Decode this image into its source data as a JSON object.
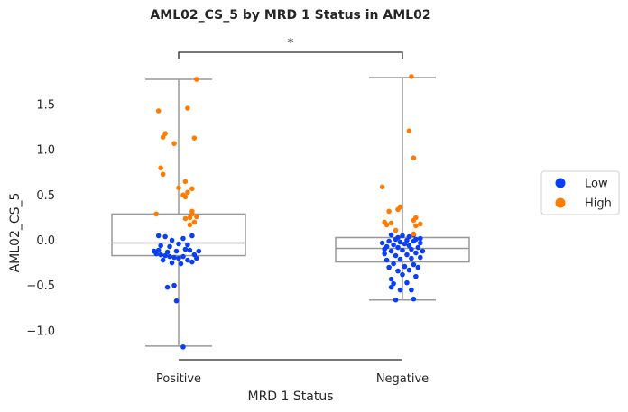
{
  "chart_data": {
    "type": "boxplot-strip",
    "title": "AML02_CS_5 by MRD 1 Status in AML02",
    "xlabel": "MRD 1 Status",
    "ylabel": "AML02_CS_5",
    "categories": [
      "Positive",
      "Negative"
    ],
    "yticks": [
      -1.0,
      -0.5,
      0.0,
      0.5,
      1.0,
      1.5
    ],
    "ytick_labels": [
      "−1.0",
      "−0.5",
      "0.0",
      "0.5",
      "1.0",
      "1.5"
    ],
    "ylim": [
      -1.32,
      1.97
    ],
    "significance": "*",
    "legend": {
      "placement": "right",
      "entries": [
        {
          "label": "Low",
          "color": "#0b3ff6"
        },
        {
          "label": "High",
          "color": "#ff7c00"
        }
      ]
    },
    "colors": {
      "box": "#999999",
      "frame": "#262626",
      "low": "#0b3ff6",
      "high": "#ff7c00"
    },
    "boxes": [
      {
        "category": "Positive",
        "whisker_low": -1.17,
        "q1": -0.17,
        "median": -0.03,
        "q3": 0.29,
        "whisker_high": 1.78
      },
      {
        "category": "Negative",
        "whisker_low": -0.66,
        "q1": -0.24,
        "median": -0.09,
        "q3": 0.03,
        "whisker_high": 1.8
      }
    ],
    "series": [
      {
        "name": "Low",
        "points": [
          {
            "cat": 0,
            "dx": 0.02,
            "y": -1.18
          },
          {
            "cat": 0,
            "dx": -0.01,
            "y": -0.67
          },
          {
            "cat": 0,
            "dx": -0.05,
            "y": -0.52
          },
          {
            "cat": 0,
            "dx": -0.02,
            "y": -0.5
          },
          {
            "cat": 0,
            "dx": -0.1,
            "y": -0.15
          },
          {
            "cat": 0,
            "dx": -0.08,
            "y": -0.16
          },
          {
            "cat": 0,
            "dx": -0.06,
            "y": -0.17
          },
          {
            "cat": 0,
            "dx": -0.04,
            "y": -0.18
          },
          {
            "cat": 0,
            "dx": -0.02,
            "y": -0.19
          },
          {
            "cat": 0,
            "dx": 0.0,
            "y": -0.2
          },
          {
            "cat": 0,
            "dx": 0.02,
            "y": -0.18
          },
          {
            "cat": 0,
            "dx": 0.04,
            "y": -0.22
          },
          {
            "cat": 0,
            "dx": 0.06,
            "y": -0.24
          },
          {
            "cat": 0,
            "dx": 0.08,
            "y": -0.2
          },
          {
            "cat": 0,
            "dx": -0.03,
            "y": -0.25
          },
          {
            "cat": 0,
            "dx": 0.01,
            "y": -0.26
          },
          {
            "cat": 0,
            "dx": -0.07,
            "y": -0.22
          },
          {
            "cat": 0,
            "dx": 0.07,
            "y": -0.16
          },
          {
            "cat": 0,
            "dx": 0.09,
            "y": -0.12
          },
          {
            "cat": 0,
            "dx": -0.09,
            "y": -0.11
          },
          {
            "cat": 0,
            "dx": -0.05,
            "y": -0.13
          },
          {
            "cat": 0,
            "dx": -0.01,
            "y": -0.12
          },
          {
            "cat": 0,
            "dx": 0.03,
            "y": -0.1
          },
          {
            "cat": 0,
            "dx": 0.05,
            "y": -0.11
          },
          {
            "cat": 0,
            "dx": -0.08,
            "y": -0.06
          },
          {
            "cat": 0,
            "dx": -0.04,
            "y": -0.07
          },
          {
            "cat": 0,
            "dx": 0.0,
            "y": -0.04
          },
          {
            "cat": 0,
            "dx": 0.04,
            "y": -0.05
          },
          {
            "cat": 0,
            "dx": -0.03,
            "y": 0.0
          },
          {
            "cat": 0,
            "dx": 0.02,
            "y": 0.02
          },
          {
            "cat": 0,
            "dx": -0.06,
            "y": 0.04
          },
          {
            "cat": 0,
            "dx": -0.09,
            "y": 0.05
          },
          {
            "cat": 0,
            "dx": 0.06,
            "y": 0.05
          },
          {
            "cat": 0,
            "dx": -0.11,
            "y": -0.12
          },
          {
            "cat": 1,
            "dx": -0.03,
            "y": -0.66
          },
          {
            "cat": 1,
            "dx": 0.05,
            "y": -0.65
          },
          {
            "cat": 1,
            "dx": -0.01,
            "y": -0.55
          },
          {
            "cat": 1,
            "dx": 0.04,
            "y": -0.55
          },
          {
            "cat": 1,
            "dx": -0.05,
            "y": -0.52
          },
          {
            "cat": 1,
            "dx": -0.04,
            "y": -0.48
          },
          {
            "cat": 1,
            "dx": 0.02,
            "y": -0.47
          },
          {
            "cat": 1,
            "dx": -0.05,
            "y": -0.43
          },
          {
            "cat": 1,
            "dx": 0.06,
            "y": -0.4
          },
          {
            "cat": 1,
            "dx": 0.0,
            "y": -0.38
          },
          {
            "cat": 1,
            "dx": -0.02,
            "y": -0.34
          },
          {
            "cat": 1,
            "dx": 0.03,
            "y": -0.33
          },
          {
            "cat": 1,
            "dx": -0.06,
            "y": -0.3
          },
          {
            "cat": 1,
            "dx": 0.07,
            "y": -0.3
          },
          {
            "cat": 1,
            "dx": 0.01,
            "y": -0.29
          },
          {
            "cat": 1,
            "dx": 0.05,
            "y": -0.27
          },
          {
            "cat": 1,
            "dx": -0.04,
            "y": -0.26
          },
          {
            "cat": 1,
            "dx": -0.07,
            "y": -0.22
          },
          {
            "cat": 1,
            "dx": -0.01,
            "y": -0.21
          },
          {
            "cat": 1,
            "dx": 0.04,
            "y": -0.2
          },
          {
            "cat": 1,
            "dx": 0.08,
            "y": -0.19
          },
          {
            "cat": 1,
            "dx": -0.03,
            "y": -0.17
          },
          {
            "cat": 1,
            "dx": 0.02,
            "y": -0.16
          },
          {
            "cat": 1,
            "dx": -0.08,
            "y": -0.15
          },
          {
            "cat": 1,
            "dx": 0.06,
            "y": -0.14
          },
          {
            "cat": 1,
            "dx": -0.05,
            "y": -0.12
          },
          {
            "cat": 1,
            "dx": 0.0,
            "y": -0.11
          },
          {
            "cat": 1,
            "dx": 0.04,
            "y": -0.1
          },
          {
            "cat": 1,
            "dx": -0.02,
            "y": -0.08
          },
          {
            "cat": 1,
            "dx": 0.07,
            "y": -0.08
          },
          {
            "cat": 1,
            "dx": -0.07,
            "y": -0.07
          },
          {
            "cat": 1,
            "dx": 0.03,
            "y": -0.06
          },
          {
            "cat": 1,
            "dx": -0.04,
            "y": -0.05
          },
          {
            "cat": 1,
            "dx": 0.01,
            "y": -0.04
          },
          {
            "cat": 1,
            "dx": -0.09,
            "y": -0.03
          },
          {
            "cat": 1,
            "dx": 0.08,
            "y": -0.03
          },
          {
            "cat": 1,
            "dx": -0.01,
            "y": -0.02
          },
          {
            "cat": 1,
            "dx": 0.05,
            "y": -0.01
          },
          {
            "cat": 1,
            "dx": -0.06,
            "y": -0.01
          },
          {
            "cat": 1,
            "dx": 0.02,
            "y": 0.0
          },
          {
            "cat": 1,
            "dx": -0.03,
            "y": 0.01
          },
          {
            "cat": 1,
            "dx": 0.06,
            "y": 0.01
          },
          {
            "cat": 1,
            "dx": 0.08,
            "y": 0.02
          },
          {
            "cat": 1,
            "dx": -0.02,
            "y": 0.03
          },
          {
            "cat": 1,
            "dx": 0.03,
            "y": 0.04
          },
          {
            "cat": 1,
            "dx": 0.0,
            "y": 0.05
          },
          {
            "cat": 1,
            "dx": 0.05,
            "y": 0.06
          },
          {
            "cat": 1,
            "dx": -0.05,
            "y": 0.06
          },
          {
            "cat": 1,
            "dx": -0.08,
            "y": -0.1
          },
          {
            "cat": 1,
            "dx": 0.09,
            "y": -0.12
          }
        ]
      },
      {
        "name": "High",
        "points": [
          {
            "cat": 0,
            "dx": 0.08,
            "y": 1.78
          },
          {
            "cat": 0,
            "dx": -0.09,
            "y": 1.43
          },
          {
            "cat": 0,
            "dx": 0.04,
            "y": 1.46
          },
          {
            "cat": 0,
            "dx": -0.06,
            "y": 1.18
          },
          {
            "cat": 0,
            "dx": -0.07,
            "y": 1.14
          },
          {
            "cat": 0,
            "dx": 0.07,
            "y": 1.13
          },
          {
            "cat": 0,
            "dx": -0.02,
            "y": 1.07
          },
          {
            "cat": 0,
            "dx": -0.08,
            "y": 0.8
          },
          {
            "cat": 0,
            "dx": -0.07,
            "y": 0.73
          },
          {
            "cat": 0,
            "dx": 0.03,
            "y": 0.65
          },
          {
            "cat": 0,
            "dx": 0.0,
            "y": 0.58
          },
          {
            "cat": 0,
            "dx": 0.06,
            "y": 0.57
          },
          {
            "cat": 0,
            "dx": 0.04,
            "y": 0.53
          },
          {
            "cat": 0,
            "dx": 0.02,
            "y": 0.5
          },
          {
            "cat": 0,
            "dx": 0.03,
            "y": 0.48
          },
          {
            "cat": 0,
            "dx": 0.06,
            "y": 0.32
          },
          {
            "cat": 0,
            "dx": 0.06,
            "y": 0.29
          },
          {
            "cat": 0,
            "dx": -0.1,
            "y": 0.29
          },
          {
            "cat": 0,
            "dx": 0.03,
            "y": 0.24
          },
          {
            "cat": 0,
            "dx": 0.05,
            "y": 0.25
          },
          {
            "cat": 0,
            "dx": 0.08,
            "y": 0.26
          },
          {
            "cat": 0,
            "dx": 0.07,
            "y": 0.2
          },
          {
            "cat": 0,
            "dx": 0.05,
            "y": 0.17
          },
          {
            "cat": 1,
            "dx": 0.04,
            "y": 1.81
          },
          {
            "cat": 1,
            "dx": 0.03,
            "y": 1.21
          },
          {
            "cat": 1,
            "dx": 0.05,
            "y": 0.91
          },
          {
            "cat": 1,
            "dx": -0.09,
            "y": 0.59
          },
          {
            "cat": 1,
            "dx": -0.01,
            "y": 0.37
          },
          {
            "cat": 1,
            "dx": -0.02,
            "y": 0.34
          },
          {
            "cat": 1,
            "dx": -0.06,
            "y": 0.32
          },
          {
            "cat": 1,
            "dx": 0.06,
            "y": 0.25
          },
          {
            "cat": 1,
            "dx": 0.05,
            "y": 0.22
          },
          {
            "cat": 1,
            "dx": -0.08,
            "y": 0.2
          },
          {
            "cat": 1,
            "dx": -0.05,
            "y": 0.19
          },
          {
            "cat": 1,
            "dx": 0.08,
            "y": 0.18
          },
          {
            "cat": 1,
            "dx": -0.07,
            "y": 0.17
          },
          {
            "cat": 1,
            "dx": 0.06,
            "y": 0.16
          },
          {
            "cat": 1,
            "dx": -0.03,
            "y": 0.11
          },
          {
            "cat": 1,
            "dx": 0.05,
            "y": 0.07
          }
        ]
      }
    ]
  }
}
